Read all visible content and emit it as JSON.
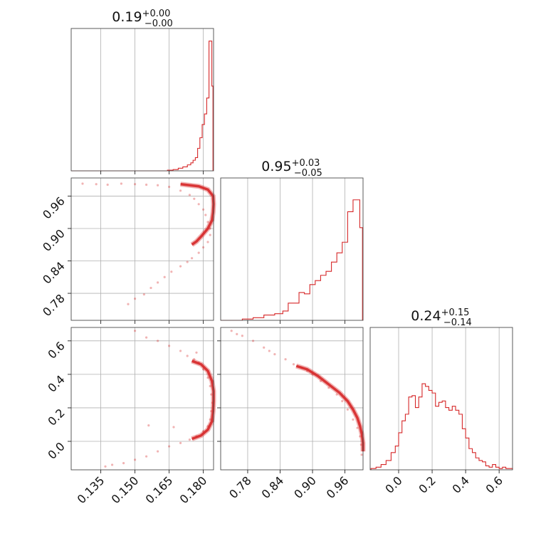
{
  "chart_data": {
    "type": "corner",
    "color": "#d62728",
    "parameters": [
      {
        "title_value": "0.19",
        "title_plus": "+0.00",
        "title_minus": "−0.00",
        "range": [
          0.122,
          0.1845
        ],
        "ticks": [
          0.135,
          0.15,
          0.165,
          0.18
        ],
        "tick_labels": [
          "0.135",
          "0.150",
          "0.165",
          "0.180"
        ]
      },
      {
        "title_value": "0.95",
        "title_plus": "+0.03",
        "title_minus": "−0.05",
        "range": [
          0.73,
          0.9935
        ],
        "ticks": [
          0.78,
          0.84,
          0.9,
          0.96
        ],
        "tick_labels": [
          "0.78",
          "0.84",
          "0.90",
          "0.96"
        ]
      },
      {
        "title_value": "0.24",
        "title_plus": "+0.15",
        "title_minus": "−0.14",
        "range": [
          -0.17,
          0.68
        ],
        "ticks": [
          0.0,
          0.2,
          0.4,
          0.6
        ],
        "tick_labels": [
          "0.0",
          "0.2",
          "0.4",
          "0.6"
        ]
      }
    ],
    "histograms": [
      {
        "x": [
          0.1655,
          0.168,
          0.17,
          0.172,
          0.174,
          0.175,
          0.176,
          0.177,
          0.178,
          0.179,
          0.18,
          0.181,
          0.182,
          0.183,
          0.1835,
          0.184
        ],
        "density": [
          0.005,
          0.01,
          0.02,
          0.03,
          0.045,
          0.06,
          0.08,
          0.1,
          0.17,
          0.25,
          0.35,
          0.43,
          0.55,
          0.98,
          0.98,
          0.64
        ]
      },
      {
        "x": [
          0.78,
          0.8,
          0.82,
          0.84,
          0.85,
          0.86,
          0.87,
          0.88,
          0.89,
          0.9,
          0.91,
          0.92,
          0.93,
          0.94,
          0.95,
          0.96,
          0.97,
          0.98,
          0.985,
          0.99
        ],
        "density": [
          0.01,
          0.02,
          0.04,
          0.05,
          0.07,
          0.13,
          0.13,
          0.21,
          0.2,
          0.27,
          0.3,
          0.34,
          0.37,
          0.44,
          0.51,
          0.59,
          0.82,
          0.91,
          0.91,
          0.7
        ]
      },
      {
        "x": [
          -0.15,
          -0.12,
          -0.09,
          -0.06,
          -0.03,
          -0.01,
          0.01,
          0.03,
          0.05,
          0.07,
          0.09,
          0.11,
          0.13,
          0.15,
          0.17,
          0.19,
          0.21,
          0.23,
          0.25,
          0.27,
          0.29,
          0.31,
          0.33,
          0.35,
          0.37,
          0.39,
          0.41,
          0.43,
          0.45,
          0.47,
          0.49,
          0.51,
          0.53,
          0.55,
          0.57,
          0.59,
          0.61,
          0.63,
          0.65,
          0.67
        ],
        "density": [
          0.01,
          0.02,
          0.04,
          0.07,
          0.13,
          0.18,
          0.28,
          0.37,
          0.42,
          0.55,
          0.56,
          0.47,
          0.55,
          0.65,
          0.63,
          0.6,
          0.58,
          0.48,
          0.51,
          0.52,
          0.47,
          0.45,
          0.48,
          0.45,
          0.42,
          0.31,
          0.24,
          0.16,
          0.13,
          0.09,
          0.07,
          0.06,
          0.03,
          0.02,
          0.04,
          0.02,
          0.01,
          0.02,
          0.01,
          0.01
        ]
      }
    ],
    "scatter_pairs": [
      {
        "x_param": 0,
        "y_param": 1,
        "points": [
          [
            0.127,
            0.983
          ],
          [
            0.133,
            0.982
          ],
          [
            0.138,
            0.981
          ],
          [
            0.144,
            0.983
          ],
          [
            0.15,
            0.982
          ],
          [
            0.155,
            0.981
          ],
          [
            0.16,
            0.98
          ],
          [
            0.165,
            0.977
          ],
          [
            0.17,
            0.97
          ],
          [
            0.174,
            0.962
          ],
          [
            0.176,
            0.955
          ],
          [
            0.178,
            0.945
          ],
          [
            0.18,
            0.935
          ],
          [
            0.181,
            0.925
          ],
          [
            0.182,
            0.912
          ],
          [
            0.183,
            0.9
          ],
          [
            0.183,
            0.888
          ],
          [
            0.182,
            0.875
          ],
          [
            0.18,
            0.865
          ],
          [
            0.178,
            0.855
          ],
          [
            0.175,
            0.845
          ],
          [
            0.173,
            0.838
          ],
          [
            0.17,
            0.83
          ],
          [
            0.166,
            0.82
          ],
          [
            0.163,
            0.81
          ],
          [
            0.16,
            0.8
          ],
          [
            0.157,
            0.79
          ],
          [
            0.154,
            0.778
          ],
          [
            0.15,
            0.77
          ],
          [
            0.147,
            0.76
          ]
        ],
        "contour": [
          [
            0.17,
            0.982
          ],
          [
            0.178,
            0.978
          ],
          [
            0.182,
            0.972
          ],
          [
            0.1843,
            0.96
          ],
          [
            0.1845,
            0.945
          ],
          [
            0.1843,
            0.93
          ],
          [
            0.1838,
            0.915
          ],
          [
            0.182,
            0.9
          ],
          [
            0.179,
            0.885
          ],
          [
            0.177,
            0.876
          ],
          [
            0.175,
            0.87
          ]
        ]
      },
      {
        "x_param": 0,
        "y_param": 2,
        "points": [
          [
            0.15,
            0.66
          ],
          [
            0.155,
            0.62
          ],
          [
            0.16,
            0.6
          ],
          [
            0.165,
            0.57
          ],
          [
            0.17,
            0.54
          ],
          [
            0.173,
            0.51
          ],
          [
            0.176,
            0.49
          ],
          [
            0.178,
            0.47
          ],
          [
            0.18,
            0.43
          ],
          [
            0.182,
            0.38
          ],
          [
            0.183,
            0.33
          ],
          [
            0.1835,
            0.28
          ],
          [
            0.184,
            0.23
          ],
          [
            0.1835,
            0.18
          ],
          [
            0.183,
            0.13
          ],
          [
            0.182,
            0.09
          ],
          [
            0.18,
            0.06
          ],
          [
            0.177,
            0.03
          ],
          [
            0.174,
            0.01
          ],
          [
            0.17,
            -0.01
          ],
          [
            0.165,
            -0.03
          ],
          [
            0.16,
            -0.06
          ],
          [
            0.155,
            -0.09
          ],
          [
            0.15,
            -0.11
          ],
          [
            0.145,
            -0.13
          ],
          [
            0.14,
            -0.14
          ],
          [
            0.156,
            0.095
          ],
          [
            0.167,
            0.085
          ],
          [
            0.177,
            0.53
          ],
          [
            0.137,
            -0.15
          ]
        ],
        "contour": [
          [
            0.175,
            0.48
          ],
          [
            0.179,
            0.46
          ],
          [
            0.182,
            0.42
          ],
          [
            0.1838,
            0.36
          ],
          [
            0.1845,
            0.3
          ],
          [
            0.1845,
            0.24
          ],
          [
            0.1843,
            0.18
          ],
          [
            0.1838,
            0.12
          ],
          [
            0.182,
            0.07
          ],
          [
            0.179,
            0.035
          ],
          [
            0.175,
            0.015
          ]
        ]
      },
      {
        "x_param": 1,
        "y_param": 2,
        "points": [
          [
            0.75,
            0.66
          ],
          [
            0.77,
            0.63
          ],
          [
            0.79,
            0.6
          ],
          [
            0.81,
            0.56
          ],
          [
            0.83,
            0.52
          ],
          [
            0.85,
            0.49
          ],
          [
            0.865,
            0.46
          ],
          [
            0.88,
            0.44
          ],
          [
            0.9,
            0.4
          ],
          [
            0.915,
            0.36
          ],
          [
            0.93,
            0.32
          ],
          [
            0.945,
            0.28
          ],
          [
            0.955,
            0.24
          ],
          [
            0.965,
            0.19
          ],
          [
            0.975,
            0.13
          ],
          [
            0.983,
            0.08
          ],
          [
            0.988,
            0.03
          ],
          [
            0.99,
            -0.02
          ],
          [
            0.991,
            -0.08
          ],
          [
            0.76,
            0.64
          ],
          [
            0.82,
            0.54
          ],
          [
            0.89,
            0.42
          ]
        ],
        "contour": [
          [
            0.87,
            0.45
          ],
          [
            0.89,
            0.43
          ],
          [
            0.91,
            0.39
          ],
          [
            0.93,
            0.34
          ],
          [
            0.95,
            0.29
          ],
          [
            0.965,
            0.24
          ],
          [
            0.975,
            0.19
          ],
          [
            0.983,
            0.14
          ],
          [
            0.988,
            0.09
          ],
          [
            0.9915,
            0.04
          ],
          [
            0.9935,
            -0.01
          ],
          [
            0.9935,
            -0.06
          ]
        ]
      }
    ]
  }
}
